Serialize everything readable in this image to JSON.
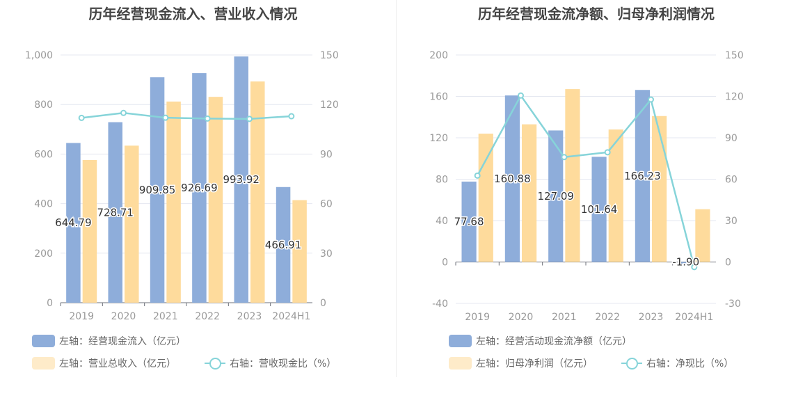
{
  "chart_data": [
    {
      "type": "bar",
      "title": "历年经营现金流入、营业收入情况",
      "categories": [
        "2019",
        "2020",
        "2021",
        "2022",
        "2023",
        "2024H1"
      ],
      "y_left": {
        "ticks": [
          "0",
          "200",
          "400",
          "600",
          "800",
          "1,000"
        ],
        "lim": [
          0,
          1000
        ]
      },
      "y_right": {
        "ticks": [
          "0",
          "30",
          "60",
          "90",
          "120",
          "150"
        ],
        "lim": [
          0,
          150
        ]
      },
      "grid": true,
      "legend_position": "bottom-left",
      "series": [
        {
          "name": "左轴：经营现金流入（亿元）",
          "type": "bar",
          "axis": "left",
          "color": "#8eadda",
          "values": [
            644.79,
            728.71,
            909.85,
            926.69,
            993.92,
            466.91
          ],
          "labels": [
            "644.79",
            "728.71",
            "909.85",
            "926.69",
            "993.92",
            "466.91"
          ]
        },
        {
          "name": "左轴：营业总收入（亿元）",
          "type": "bar",
          "axis": "left",
          "color": "#fedb9c",
          "values": [
            576,
            634,
            812,
            831,
            893,
            414
          ]
        },
        {
          "name": "右轴：营收现金比（%）",
          "type": "line",
          "axis": "right",
          "color": "#86d4d9",
          "values": [
            111.9,
            114.9,
            112.0,
            111.5,
            111.3,
            112.9
          ]
        }
      ]
    },
    {
      "type": "bar",
      "title": "历年经营现金流净额、归母净利润情况",
      "categories": [
        "2019",
        "2020",
        "2021",
        "2022",
        "2023",
        "2024H1"
      ],
      "y_left": {
        "ticks": [
          "-40",
          "0",
          "40",
          "80",
          "120",
          "160",
          "200"
        ],
        "lim": [
          -40,
          200
        ]
      },
      "y_right": {
        "ticks": [
          "-30",
          "0",
          "30",
          "60",
          "90",
          "120",
          "150"
        ],
        "lim": [
          -30,
          150
        ]
      },
      "grid": true,
      "legend_position": "bottom-left",
      "series": [
        {
          "name": "左轴：经营活动现金流净额（亿元）",
          "type": "bar",
          "axis": "left",
          "color": "#8eadda",
          "values": [
            77.68,
            160.88,
            127.09,
            101.64,
            166.23,
            -1.9
          ],
          "labels": [
            "77.68",
            "160.88",
            "127.09",
            "101.64",
            "166.23",
            "-1.90"
          ]
        },
        {
          "name": "左轴：归母净利润（亿元）",
          "type": "bar",
          "axis": "left",
          "color": "#fedb9c",
          "values": [
            124,
            133,
            167,
            128,
            141,
            51
          ]
        },
        {
          "name": "右轴：净现比（%）",
          "type": "line",
          "axis": "right",
          "color": "#86d4d9",
          "values": [
            62.6,
            120.6,
            76.0,
            79.5,
            117.7,
            -3.7
          ]
        }
      ]
    }
  ]
}
